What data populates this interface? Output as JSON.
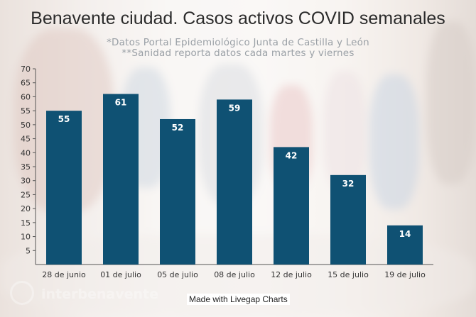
{
  "title": "Benavente ciudad. Casos activos COVID semanales",
  "subtitle_1": "*Datos Portal Epidemiológico Junta de Castilla y León",
  "subtitle_2": "**Sanidad reporta datos cada martes y viernes",
  "credit": "Made with Livegap Charts",
  "watermark_icon": "interbenavente-logo",
  "chart_data": {
    "type": "bar",
    "categories": [
      "28 de junio",
      "01 de julio",
      "05 de julio",
      "08 de julio",
      "12 de julio",
      "15 de julio",
      "19 de julio"
    ],
    "values": [
      55,
      61,
      52,
      59,
      42,
      32,
      14
    ],
    "ylim": [
      0,
      70
    ],
    "yticks": [
      5,
      10,
      15,
      20,
      25,
      30,
      35,
      40,
      45,
      50,
      55,
      60,
      65,
      70
    ],
    "bar_color": "#0f5173",
    "grid": false,
    "data_labels": true
  }
}
